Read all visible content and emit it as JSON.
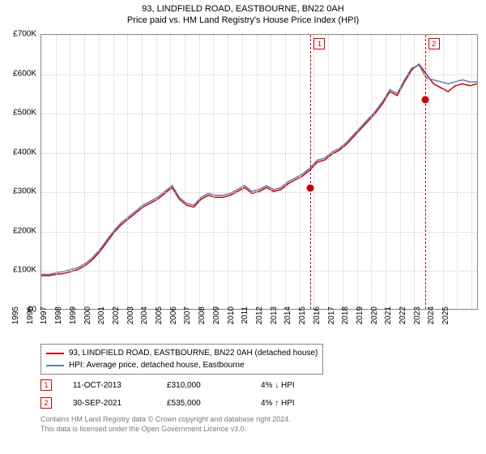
{
  "title_line1": "93, LINDFIELD ROAD, EASTBOURNE, BN22 0AH",
  "title_line2": "Price paid vs. HM Land Registry's House Price Index (HPI)",
  "chart": {
    "type": "line",
    "background_color": "#ffffff",
    "grid_color": "#cccccc",
    "border_color": "#888888",
    "ylim": [
      0,
      700000
    ],
    "ytick_step": 100000,
    "ytick_labels": [
      "£0",
      "£100K",
      "£200K",
      "£300K",
      "£400K",
      "£500K",
      "£600K",
      "£700K"
    ],
    "xlim": [
      1995,
      2025.5
    ],
    "xtick_step": 1,
    "xtick_labels": [
      "1995",
      "1996",
      "1997",
      "1998",
      "1999",
      "2000",
      "2001",
      "2002",
      "2003",
      "2004",
      "2005",
      "2006",
      "2007",
      "2008",
      "2009",
      "2010",
      "2011",
      "2012",
      "2013",
      "2014",
      "2015",
      "2016",
      "2017",
      "2018",
      "2019",
      "2020",
      "2021",
      "2022",
      "2023",
      "2024",
      "2025"
    ],
    "series": [
      {
        "name": "93, LINDFIELD ROAD, EASTBOURNE, BN22 0AH (detached house)",
        "color": "#cc0000",
        "line_width": 1.5,
        "points_y": [
          85,
          85,
          88,
          90,
          95,
          100,
          110,
          125,
          145,
          170,
          195,
          215,
          230,
          245,
          260,
          270,
          280,
          295,
          310,
          280,
          265,
          260,
          280,
          290,
          285,
          285,
          290,
          300,
          310,
          295,
          300,
          310,
          300,
          305,
          320,
          330,
          340,
          355,
          375,
          380,
          395,
          405,
          420,
          440,
          460,
          480,
          500,
          525,
          555,
          545,
          580,
          610,
          625,
          600,
          575,
          565,
          555,
          570,
          575,
          570,
          575
        ]
      },
      {
        "name": "HPI: Average price, detached house, Eastbourne",
        "color": "#5b7cb8",
        "line_width": 1.5,
        "points_y": [
          88,
          88,
          92,
          95,
          100,
          105,
          115,
          130,
          150,
          175,
          200,
          220,
          235,
          250,
          265,
          275,
          285,
          300,
          315,
          285,
          270,
          265,
          285,
          295,
          290,
          290,
          295,
          305,
          315,
          300,
          305,
          315,
          305,
          310,
          325,
          335,
          345,
          360,
          380,
          385,
          400,
          410,
          425,
          445,
          465,
          485,
          505,
          530,
          560,
          550,
          585,
          615,
          623,
          590,
          585,
          580,
          575,
          580,
          585,
          580,
          580
        ]
      }
    ],
    "events": [
      {
        "num": "1",
        "date": "11-OCT-2013",
        "price": "£310,000",
        "pct": "4% ↓ HPI",
        "x_year": 2013.78,
        "y_value": 310000,
        "color": "#cc0000"
      },
      {
        "num": "2",
        "date": "30-SEP-2021",
        "price": "£535,000",
        "pct": "4% ↑ HPI",
        "x_year": 2021.75,
        "y_value": 535000,
        "color": "#cc0000"
      }
    ],
    "legend_items": [
      {
        "color": "#cc0000",
        "label": "93, LINDFIELD ROAD, EASTBOURNE, BN22 0AH (detached house)"
      },
      {
        "color": "#5b7cb8",
        "label": "HPI: Average price, detached house, Eastbourne"
      }
    ]
  },
  "footer_line1": "Contains HM Land Registry data © Crown copyright and database right 2024.",
  "footer_line2": "This data is licensed under the Open Government Licence v3.0."
}
